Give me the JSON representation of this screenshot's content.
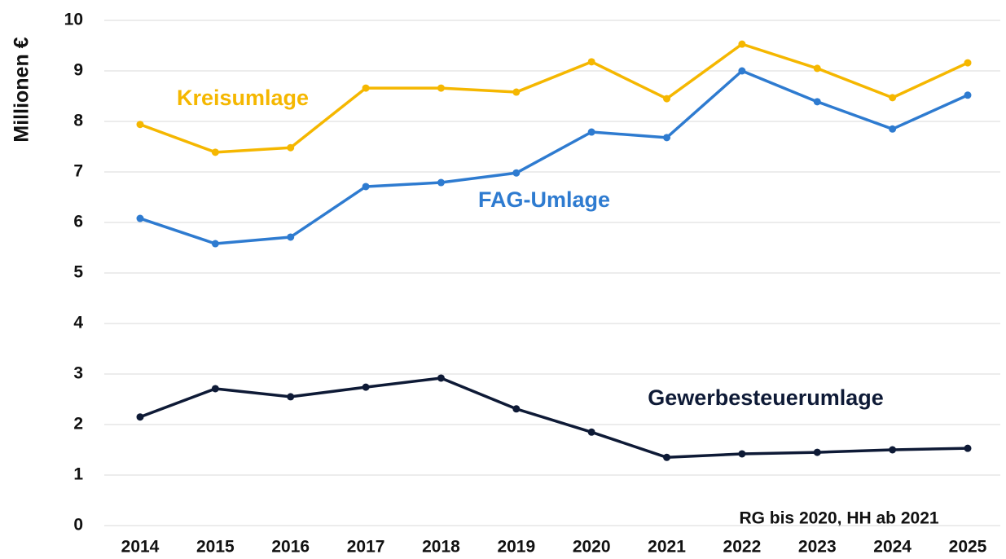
{
  "chart_data": {
    "type": "line",
    "y_label": "Millionen €",
    "annotation": "RG bis 2020, HH ab 2021",
    "categories": [
      "2014",
      "2015",
      "2016",
      "2017",
      "2018",
      "2019",
      "2020",
      "2021",
      "2022",
      "2023",
      "2024",
      "2025"
    ],
    "series": [
      {
        "name": "Kreisumlage",
        "color": "#f5b700",
        "values": [
          7.94,
          7.39,
          7.48,
          8.66,
          8.66,
          8.58,
          9.18,
          8.45,
          9.53,
          9.05,
          8.47,
          9.16
        ]
      },
      {
        "name": "FAG-Umlage",
        "color": "#2e7bd0",
        "values": [
          6.08,
          5.58,
          5.71,
          6.71,
          6.79,
          6.98,
          7.79,
          7.68,
          9.0,
          8.39,
          7.85,
          8.52
        ]
      },
      {
        "name": "Gewerbesteuerumlage",
        "color": "#0e1a36",
        "values": [
          2.15,
          2.71,
          2.55,
          2.74,
          2.92,
          2.31,
          1.85,
          1.35,
          1.42,
          1.45,
          1.5,
          1.53
        ]
      }
    ],
    "ylim": [
      0,
      10
    ],
    "yticks": [
      0,
      1,
      2,
      3,
      4,
      5,
      6,
      7,
      8,
      9,
      10
    ],
    "grid": true
  }
}
